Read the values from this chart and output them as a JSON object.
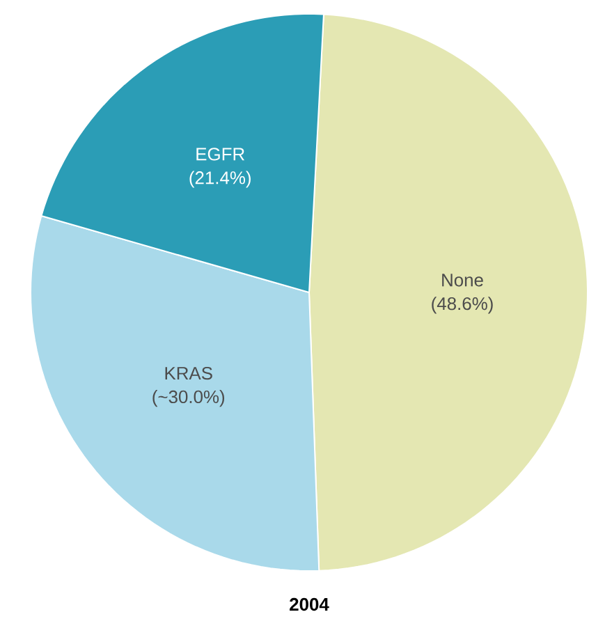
{
  "chart_data": {
    "type": "pie",
    "title": "2004",
    "categories": [
      "None",
      "KRAS",
      "EGFR"
    ],
    "values": [
      48.6,
      30.0,
      21.4
    ],
    "value_labels": [
      "(48.6%)",
      "(~30.0%)",
      "(21.4%)"
    ],
    "colors": [
      "#e4e7b2",
      "#a9d9ea",
      "#2b9db6"
    ]
  }
}
